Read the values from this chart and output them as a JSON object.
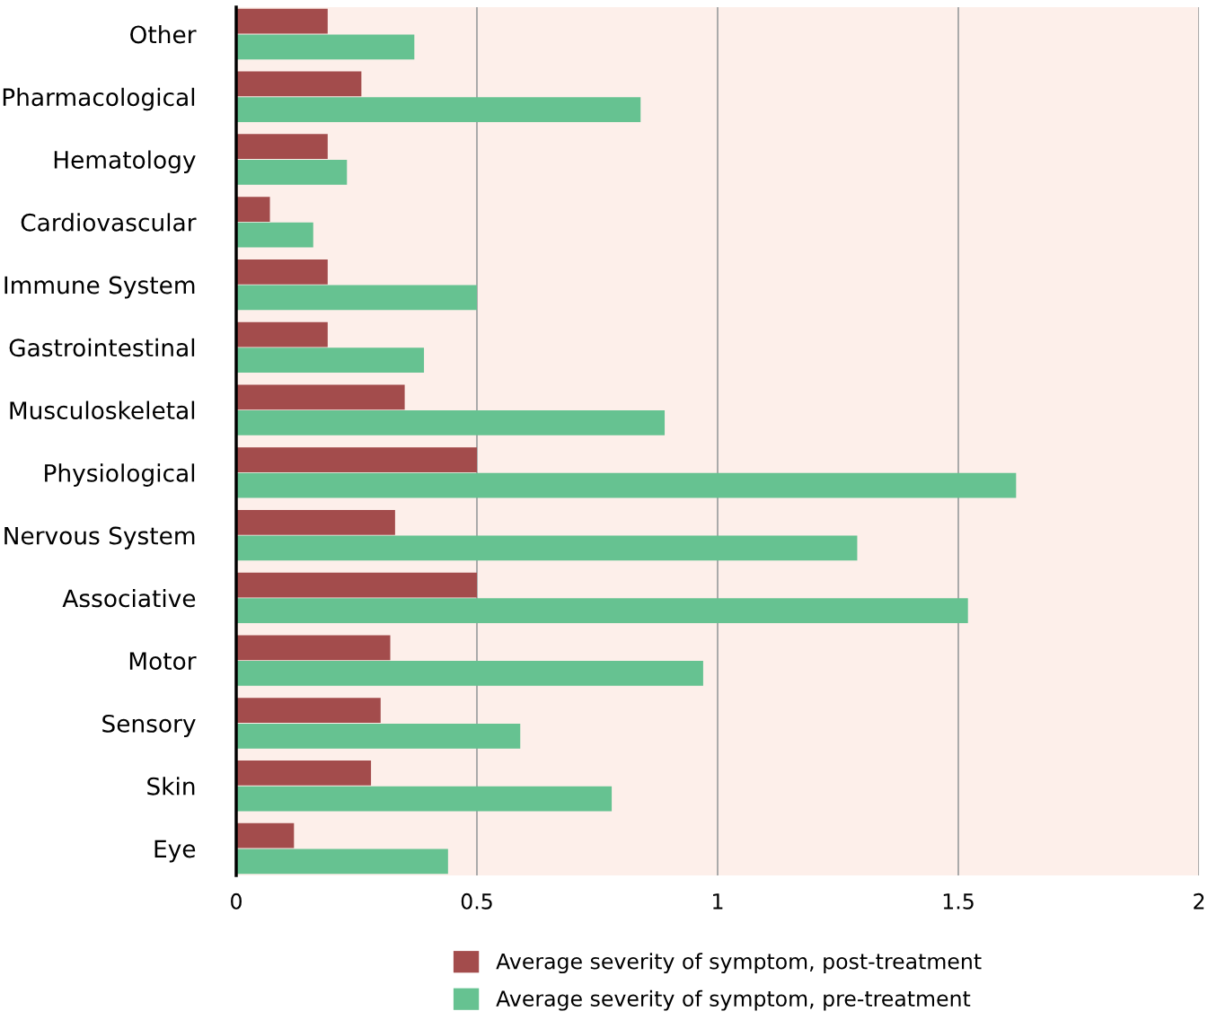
{
  "chart_data": {
    "type": "bar",
    "orientation": "horizontal",
    "categories": [
      "Other",
      "Pharmacological",
      "Hematology",
      "Cardiovascular",
      "Immune System",
      "Gastrointestinal",
      "Musculoskeletal",
      "Physiological",
      "Nervous System",
      "Associative",
      "Motor",
      "Sensory",
      "Skin",
      "Eye"
    ],
    "series": [
      {
        "name": "Average severity of symptom, post-treatment",
        "color": "#a34c4c",
        "values": [
          0.19,
          0.26,
          0.19,
          0.07,
          0.19,
          0.19,
          0.35,
          0.5,
          0.33,
          0.5,
          0.32,
          0.3,
          0.28,
          0.12
        ]
      },
      {
        "name": "Average severity of symptom, pre-treatment",
        "color": "#66c291",
        "values": [
          0.37,
          0.84,
          0.23,
          0.16,
          0.5,
          0.39,
          0.89,
          1.62,
          1.29,
          1.52,
          0.97,
          0.59,
          0.78,
          0.44
        ]
      }
    ],
    "xlim": [
      0,
      2
    ],
    "xticks": [
      0,
      0.5,
      1,
      1.5,
      2
    ],
    "grid": "x",
    "legend": "bottom"
  }
}
